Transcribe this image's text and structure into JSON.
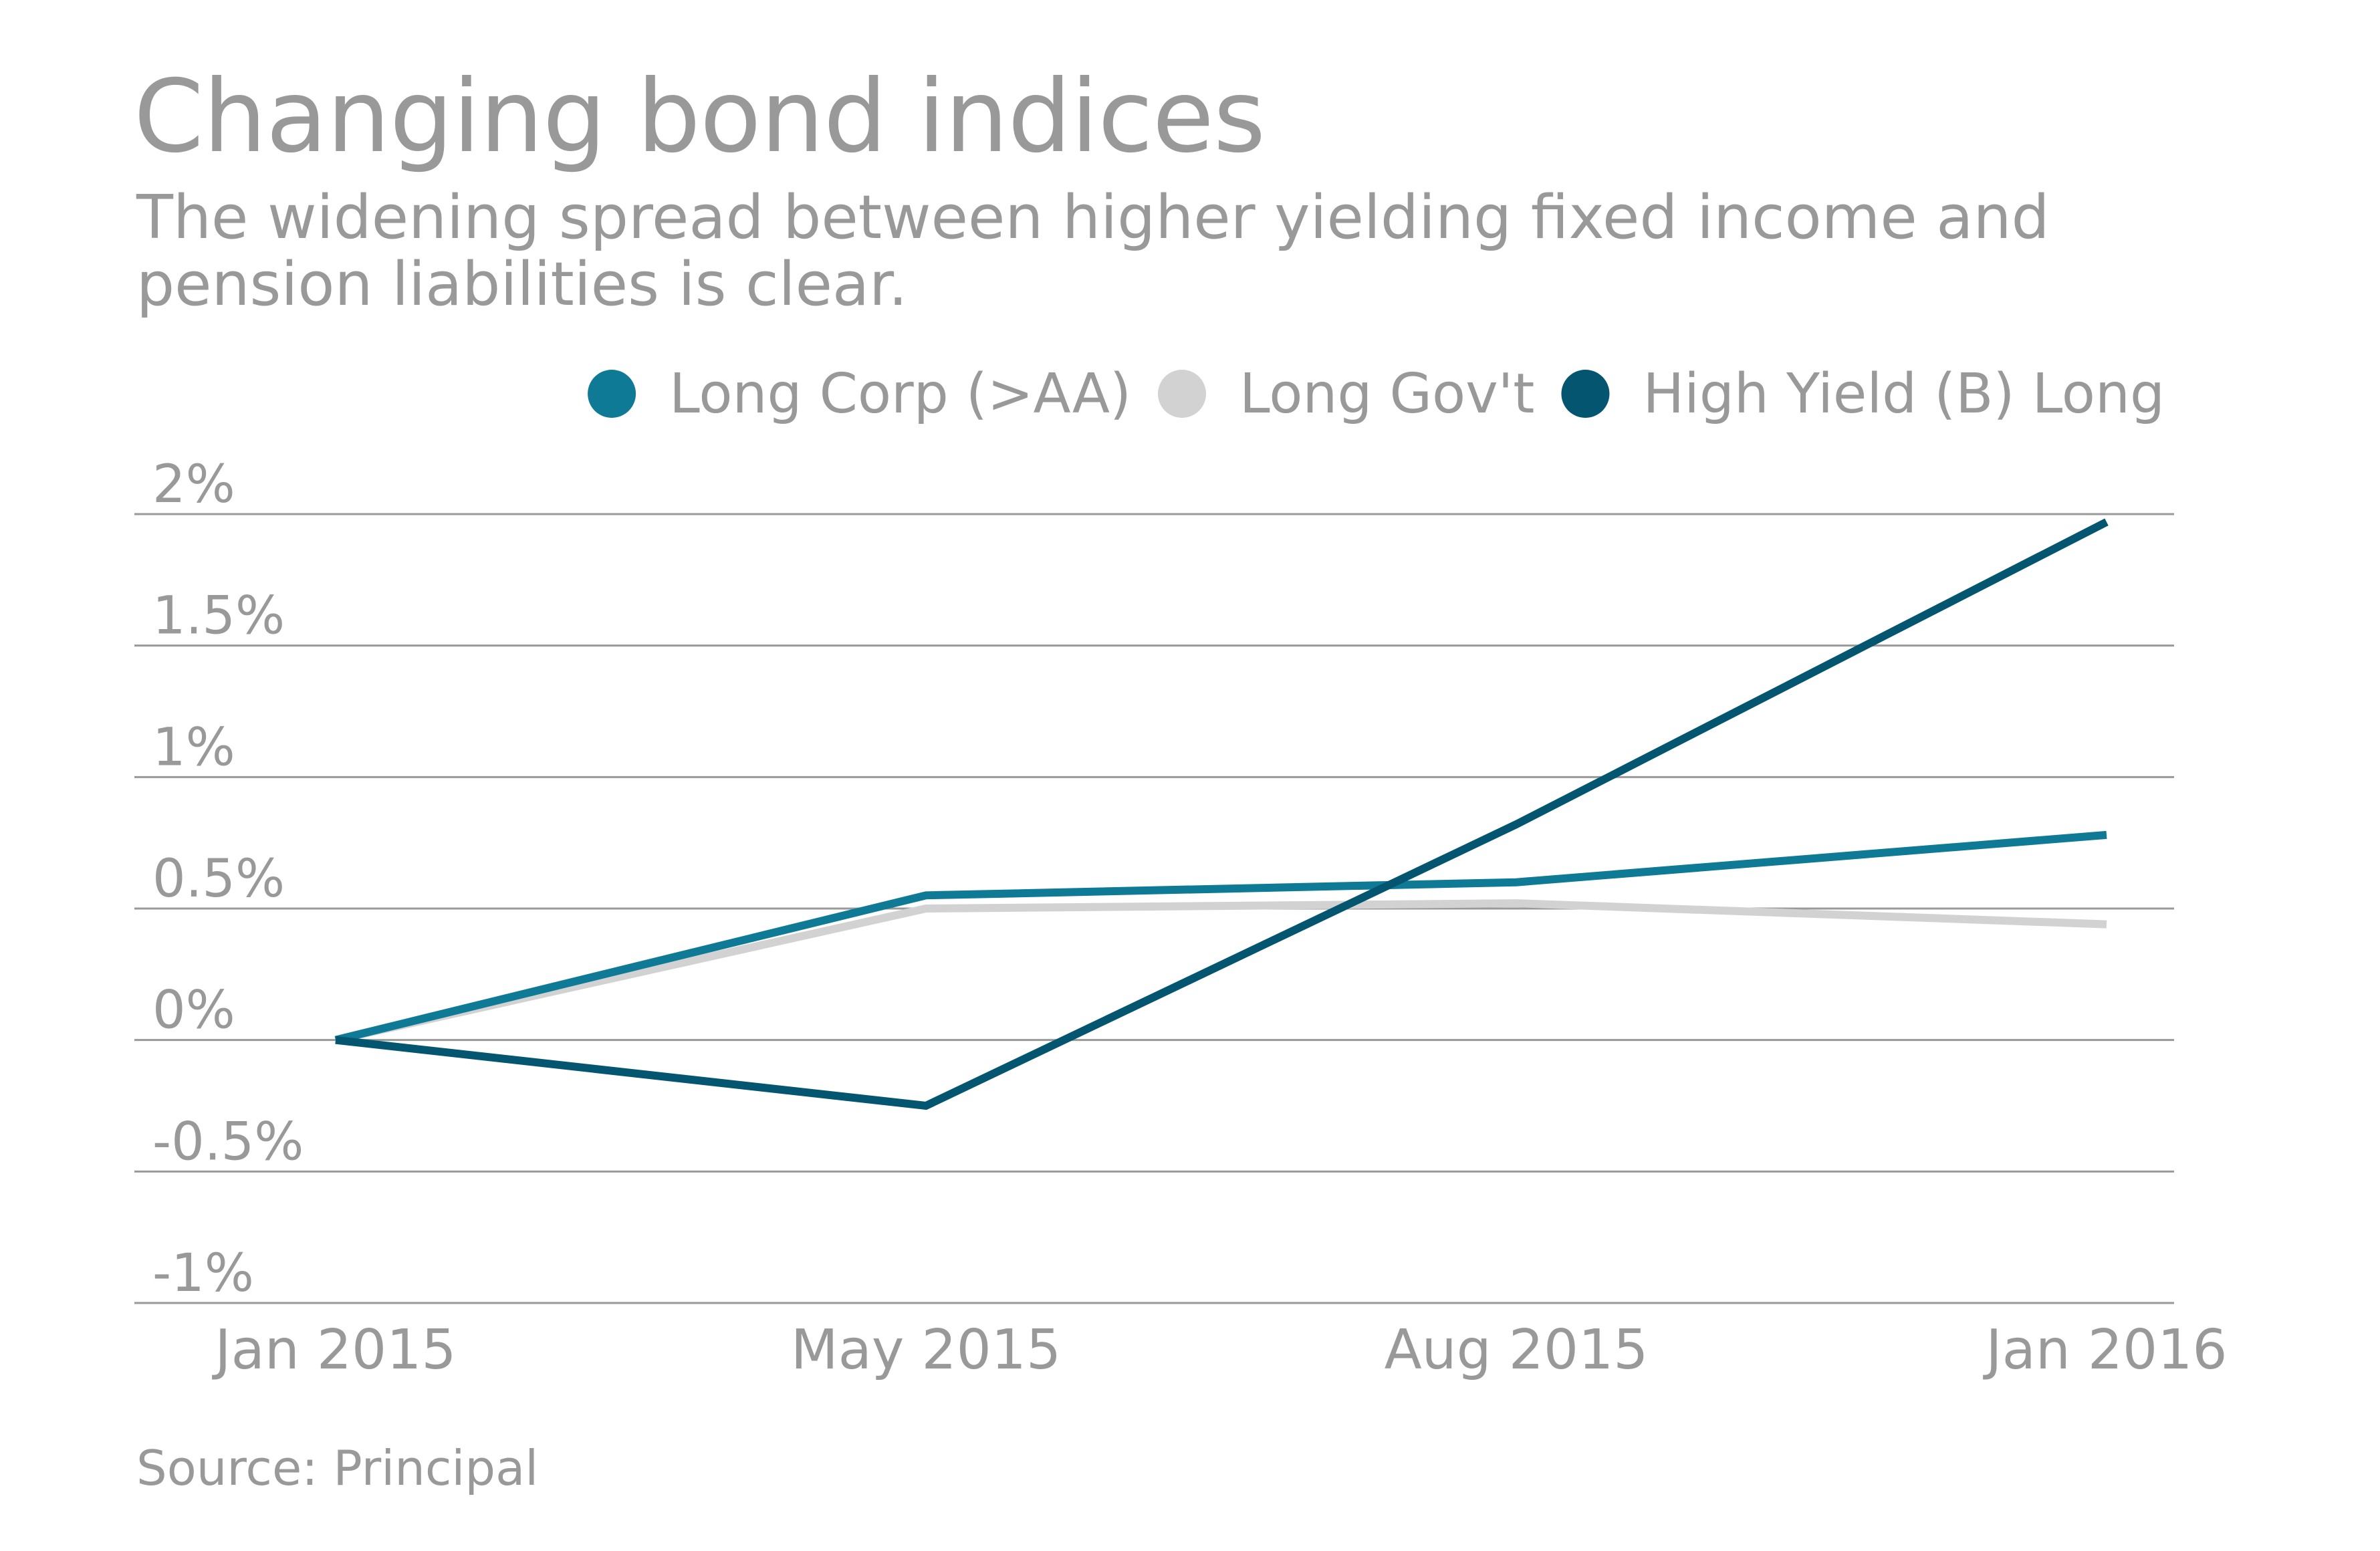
{
  "header": {
    "title": "Changing bond indices",
    "subtitle_lines": [
      "The widening spread between higher yielding fixed income and",
      "pension liabilities is clear."
    ]
  },
  "footer": {
    "source": "Source: Principal"
  },
  "colors": {
    "text": "#999999",
    "gridline": "#999999",
    "long_corp": "#0e7a96",
    "long_govt": "#d3d2d3",
    "high_yield": "#045570"
  },
  "chart_data": {
    "type": "line",
    "title": "Changing bond indices",
    "subtitle": "The widening spread between higher yielding fixed income and pension liabilities is clear.",
    "xlabel": "",
    "ylabel": "",
    "categories": [
      "Jan 2015",
      "May 2015",
      "Aug 2015",
      "Jan 2016"
    ],
    "ylim": [
      -1,
      2
    ],
    "yticks": [
      2,
      1.5,
      1,
      0.5,
      0,
      -0.5,
      -1
    ],
    "ytick_labels": [
      "2%",
      "1.5%",
      "1%",
      "0.5%",
      "0%",
      "-0.5%",
      "-1%"
    ],
    "grid": true,
    "legend_position": "top-right",
    "series": [
      {
        "name": "Long Corp (>AA)",
        "color": "#0e7a96",
        "values": [
          0,
          0.55,
          0.6,
          0.78
        ]
      },
      {
        "name": "Long Gov't",
        "color": "#d3d2d3",
        "values": [
          0,
          0.5,
          0.52,
          0.44
        ]
      },
      {
        "name": "High Yield (B) Long",
        "color": "#045570",
        "values": [
          0,
          -0.25,
          0.82,
          1.97
        ]
      }
    ],
    "source": "Source: Principal"
  }
}
